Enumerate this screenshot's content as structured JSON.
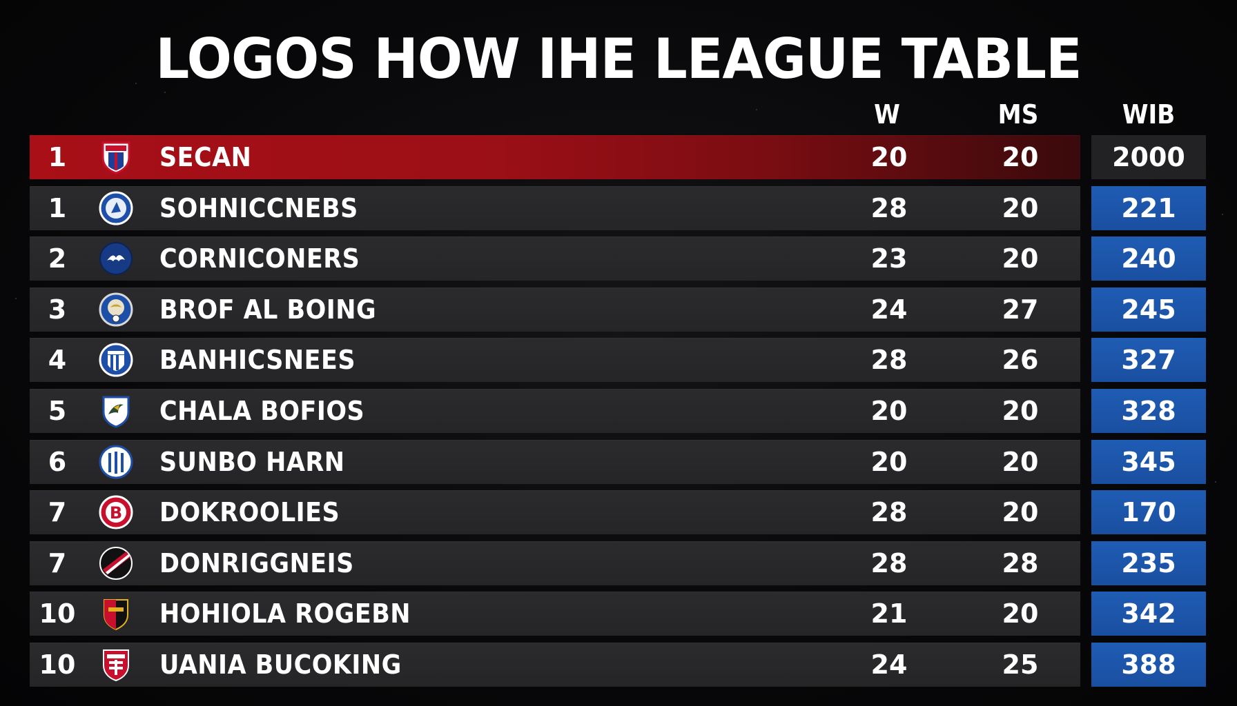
{
  "title": "LOGOS HOW IHE LEAGUE TABLE",
  "columns": {
    "w": "W",
    "ms": "MS",
    "wib": "WIB"
  },
  "colors": {
    "leader_row": "#a80f17",
    "highlight_column": "#1f5cb4",
    "row_background": "#2b2b2e",
    "page_background": "#050506"
  },
  "rows": [
    {
      "pos": "1",
      "team": "SECAN",
      "w": "20",
      "ms": "20",
      "wib": "2000",
      "crest": "red-blue-shield-crest-icon",
      "leader": true
    },
    {
      "pos": "1",
      "team": "SOHNICCNEBS",
      "w": "28",
      "ms": "20",
      "wib": "221",
      "crest": "blue-round-crest-icon"
    },
    {
      "pos": "2",
      "team": "CORNICONERS",
      "w": "23",
      "ms": "20",
      "wib": "240",
      "crest": "navy-circle-crest-icon"
    },
    {
      "pos": "3",
      "team": "BROF AL BOING",
      "w": "24",
      "ms": "27",
      "wib": "245",
      "crest": "gold-eagle-crest-icon"
    },
    {
      "pos": "4",
      "team": "BANHICSNEES",
      "w": "28",
      "ms": "26",
      "wib": "327",
      "crest": "blue-striped-crest-icon"
    },
    {
      "pos": "5",
      "team": "CHALA BOFIOS",
      "w": "20",
      "ms": "20",
      "wib": "328",
      "crest": "bird-shield-crest-icon"
    },
    {
      "pos": "6",
      "team": "SUNBO HARN",
      "w": "20",
      "ms": "20",
      "wib": "345",
      "crest": "blue-white-striped-crest-icon"
    },
    {
      "pos": "7",
      "team": "DOKROOLIES",
      "w": "28",
      "ms": "20",
      "wib": "170",
      "crest": "red-b-crest-icon"
    },
    {
      "pos": "7",
      "team": "DONRIGGNEIS",
      "w": "28",
      "ms": "28",
      "wib": "235",
      "crest": "black-red-sash-crest-icon"
    },
    {
      "pos": "10",
      "team": "HOHIOLA ROGEBN",
      "w": "21",
      "ms": "20",
      "wib": "342",
      "crest": "red-black-shield-crest-icon"
    },
    {
      "pos": "10",
      "team": "UANIA BUCOKING",
      "w": "24",
      "ms": "25",
      "wib": "388",
      "crest": "red-white-shield-crest-icon"
    }
  ]
}
